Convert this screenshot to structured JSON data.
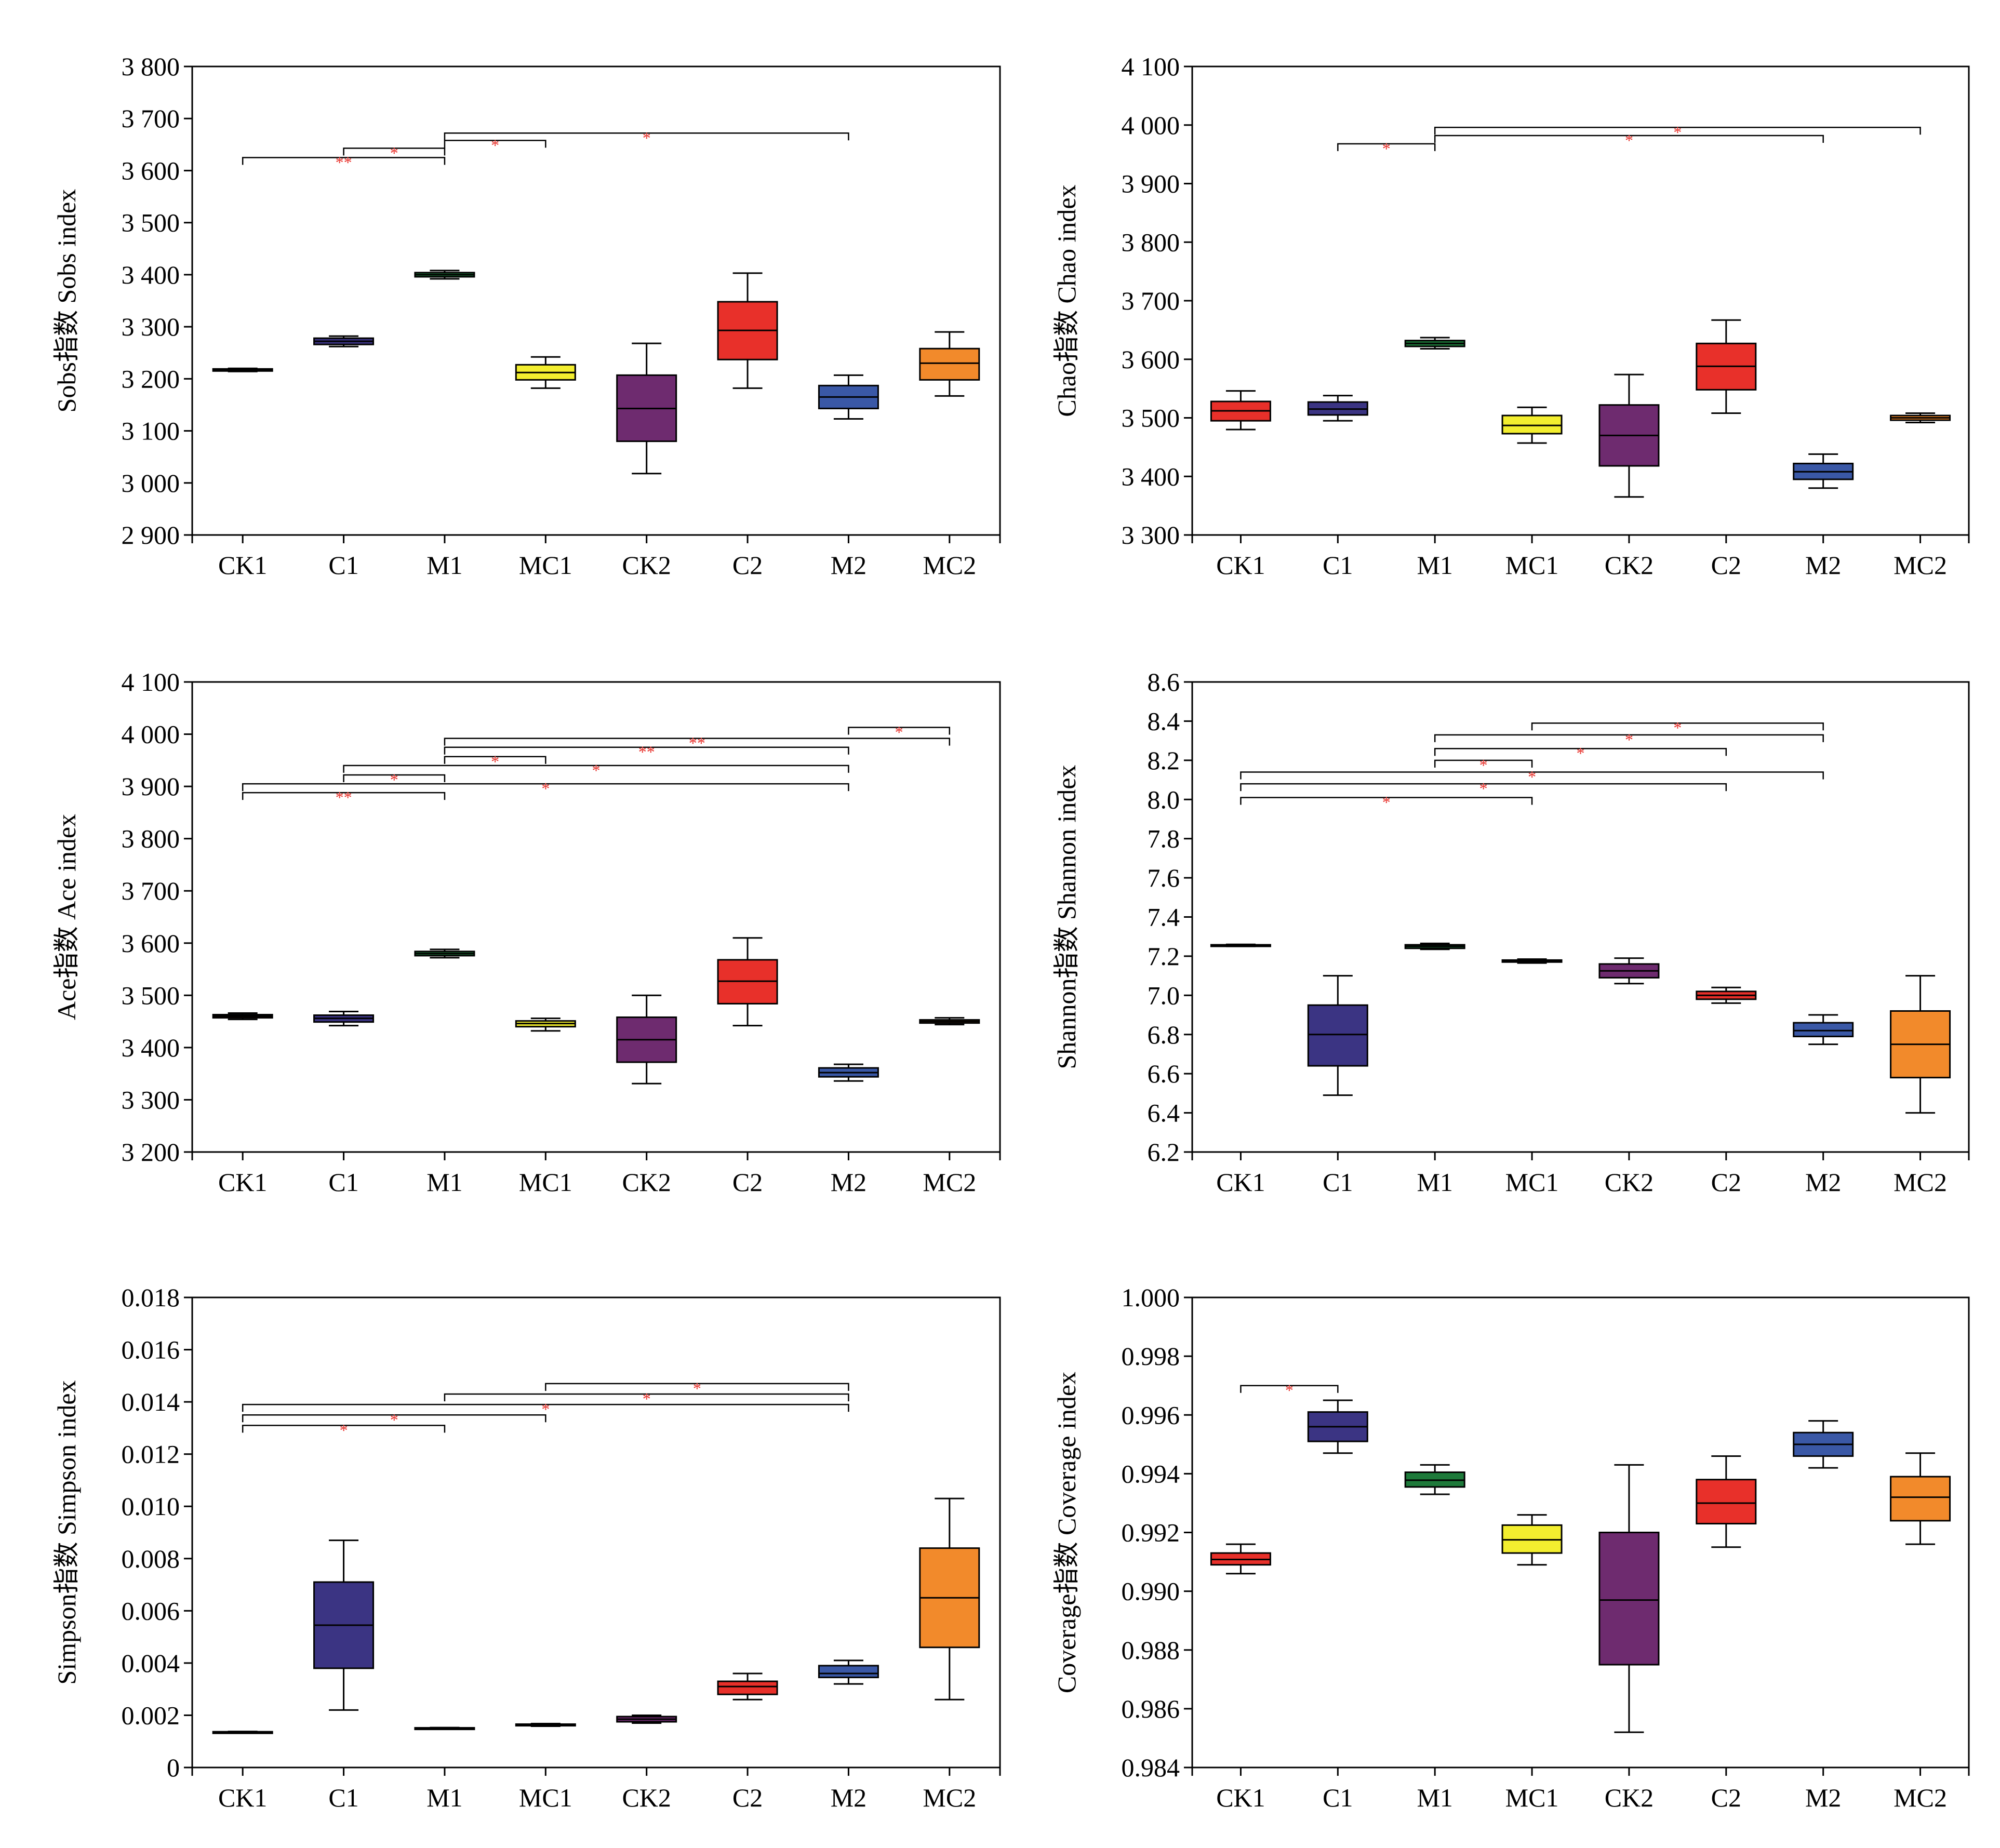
{
  "colors": {
    "CK1": "#e8302a",
    "C1": "#3b3483",
    "M1": "#1e7a3a",
    "MC1": "#f3ee2f",
    "CK2": "#6e2b6f",
    "C2": "#e8302a",
    "M2": "#3a58a6",
    "MC2": "#f28a2b",
    "significance": "#e8302a"
  },
  "chart_data": [
    {
      "type": "box",
      "ylabel": "Sobs指数 Sobs index",
      "categories": [
        "CK1",
        "C1",
        "M1",
        "MC1",
        "CK2",
        "C2",
        "M2",
        "MC2"
      ],
      "ylim": [
        2900,
        3800
      ],
      "yticks": [
        2900,
        3000,
        3100,
        3200,
        3300,
        3400,
        3500,
        3600,
        3700,
        3800
      ],
      "ytick_labels": [
        "2 900",
        "3 000",
        "3 100",
        "3 200",
        "3 300",
        "3 400",
        "3 500",
        "3 600",
        "3 700",
        "3 800"
      ],
      "boxes": [
        {
          "min": 3214,
          "q1": 3215,
          "median": 3217,
          "q3": 3219,
          "max": 3220
        },
        {
          "min": 3262,
          "q1": 3266,
          "median": 3272,
          "q3": 3278,
          "max": 3282
        },
        {
          "min": 3392,
          "q1": 3396,
          "median": 3400,
          "q3": 3404,
          "max": 3408
        },
        {
          "min": 3182,
          "q1": 3198,
          "median": 3212,
          "q3": 3227,
          "max": 3242
        },
        {
          "min": 3018,
          "q1": 3080,
          "median": 3143,
          "q3": 3207,
          "max": 3268
        },
        {
          "min": 3182,
          "q1": 3237,
          "median": 3293,
          "q3": 3348,
          "max": 3403
        },
        {
          "min": 3123,
          "q1": 3143,
          "median": 3165,
          "q3": 3187,
          "max": 3207
        },
        {
          "min": 3167,
          "q1": 3198,
          "median": 3230,
          "q3": 3258,
          "max": 3290
        }
      ],
      "significance": [
        {
          "from": 0,
          "to": 2,
          "y": 3625,
          "label": "**"
        },
        {
          "from": 1,
          "to": 2,
          "y": 3643,
          "label": "*"
        },
        {
          "from": 2,
          "to": 3,
          "y": 3658,
          "label": "*"
        },
        {
          "from": 2,
          "to": 6,
          "y": 3672,
          "label": "*"
        }
      ]
    },
    {
      "type": "box",
      "ylabel": "Chao指数 Chao index",
      "categories": [
        "CK1",
        "C1",
        "M1",
        "MC1",
        "CK2",
        "C2",
        "M2",
        "MC2"
      ],
      "ylim": [
        3300,
        4100
      ],
      "yticks": [
        3300,
        3400,
        3500,
        3600,
        3700,
        3800,
        3900,
        4000,
        4100
      ],
      "ytick_labels": [
        "3 300",
        "3 400",
        "3 500",
        "3 600",
        "3 700",
        "3 800",
        "3 900",
        "4 000",
        "4 100"
      ],
      "boxes": [
        {
          "min": 3480,
          "q1": 3495,
          "median": 3512,
          "q3": 3528,
          "max": 3546
        },
        {
          "min": 3495,
          "q1": 3505,
          "median": 3515,
          "q3": 3527,
          "max": 3538
        },
        {
          "min": 3618,
          "q1": 3622,
          "median": 3627,
          "q3": 3632,
          "max": 3637
        },
        {
          "min": 3457,
          "q1": 3473,
          "median": 3487,
          "q3": 3504,
          "max": 3518
        },
        {
          "min": 3365,
          "q1": 3418,
          "median": 3470,
          "q3": 3522,
          "max": 3574
        },
        {
          "min": 3508,
          "q1": 3548,
          "median": 3588,
          "q3": 3627,
          "max": 3667
        },
        {
          "min": 3380,
          "q1": 3395,
          "median": 3408,
          "q3": 3422,
          "max": 3438
        },
        {
          "min": 3492,
          "q1": 3496,
          "median": 3500,
          "q3": 3504,
          "max": 3508
        }
      ],
      "significance": [
        {
          "from": 1,
          "to": 2,
          "y": 3968,
          "label": "*"
        },
        {
          "from": 2,
          "to": 6,
          "y": 3982,
          "label": "*"
        },
        {
          "from": 2,
          "to": 7,
          "y": 3996,
          "label": "*"
        }
      ]
    },
    {
      "type": "box",
      "ylabel": "Ace指数 Ace index",
      "categories": [
        "CK1",
        "C1",
        "M1",
        "MC1",
        "CK2",
        "C2",
        "M2",
        "MC2"
      ],
      "ylim": [
        3200,
        4100
      ],
      "yticks": [
        3200,
        3300,
        3400,
        3500,
        3600,
        3700,
        3800,
        3900,
        4000,
        4100
      ],
      "ytick_labels": [
        "3 200",
        "3 300",
        "3 400",
        "3 500",
        "3 600",
        "3 700",
        "3 800",
        "3 900",
        "4 000",
        "4 100"
      ],
      "boxes": [
        {
          "min": 3454,
          "q1": 3457,
          "median": 3460,
          "q3": 3463,
          "max": 3466
        },
        {
          "min": 3442,
          "q1": 3449,
          "median": 3456,
          "q3": 3462,
          "max": 3469
        },
        {
          "min": 3572,
          "q1": 3576,
          "median": 3580,
          "q3": 3584,
          "max": 3588
        },
        {
          "min": 3432,
          "q1": 3440,
          "median": 3446,
          "q3": 3451,
          "max": 3456
        },
        {
          "min": 3331,
          "q1": 3372,
          "median": 3415,
          "q3": 3458,
          "max": 3500
        },
        {
          "min": 3442,
          "q1": 3484,
          "median": 3527,
          "q3": 3568,
          "max": 3610
        },
        {
          "min": 3336,
          "q1": 3344,
          "median": 3352,
          "q3": 3361,
          "max": 3368
        },
        {
          "min": 3444,
          "q1": 3447,
          "median": 3450,
          "q3": 3453,
          "max": 3457
        }
      ],
      "significance": [
        {
          "from": 0,
          "to": 2,
          "y": 3888,
          "label": "**"
        },
        {
          "from": 0,
          "to": 6,
          "y": 3905,
          "label": "*"
        },
        {
          "from": 1,
          "to": 2,
          "y": 3922,
          "label": "*"
        },
        {
          "from": 1,
          "to": 6,
          "y": 3940,
          "label": "*"
        },
        {
          "from": 2,
          "to": 3,
          "y": 3957,
          "label": "*"
        },
        {
          "from": 2,
          "to": 6,
          "y": 3975,
          "label": "**"
        },
        {
          "from": 2,
          "to": 7,
          "y": 3992,
          "label": "**"
        },
        {
          "from": 6,
          "to": 7,
          "y": 4013,
          "label": "*"
        }
      ]
    },
    {
      "type": "box",
      "ylabel": "Shannon指数 Shannon index",
      "categories": [
        "CK1",
        "C1",
        "M1",
        "MC1",
        "CK2",
        "C2",
        "M2",
        "MC2"
      ],
      "ylim": [
        6.2,
        8.6
      ],
      "yticks": [
        6.2,
        6.4,
        6.6,
        6.8,
        7.0,
        7.2,
        7.4,
        7.6,
        7.8,
        8.0,
        8.2,
        8.4,
        8.6
      ],
      "ytick_labels": [
        "6.2",
        "6.4",
        "6.6",
        "6.8",
        "7.0",
        "7.2",
        "7.4",
        "7.6",
        "7.8",
        "8.0",
        "8.2",
        "8.4",
        "8.6"
      ],
      "boxes": [
        {
          "min": 7.25,
          "q1": 7.252,
          "median": 7.255,
          "q3": 7.258,
          "max": 7.26
        },
        {
          "min": 6.49,
          "q1": 6.64,
          "median": 6.8,
          "q3": 6.95,
          "max": 7.1
        },
        {
          "min": 7.235,
          "q1": 7.24,
          "median": 7.25,
          "q3": 7.258,
          "max": 7.265
        },
        {
          "min": 7.165,
          "q1": 7.17,
          "median": 7.175,
          "q3": 7.18,
          "max": 7.185
        },
        {
          "min": 7.06,
          "q1": 7.09,
          "median": 7.125,
          "q3": 7.16,
          "max": 7.19
        },
        {
          "min": 6.96,
          "q1": 6.98,
          "median": 7.0,
          "q3": 7.02,
          "max": 7.04
        },
        {
          "min": 6.75,
          "q1": 6.79,
          "median": 6.82,
          "q3": 6.86,
          "max": 6.9
        },
        {
          "min": 6.4,
          "q1": 6.58,
          "median": 6.75,
          "q3": 6.92,
          "max": 7.1
        }
      ],
      "significance": [
        {
          "from": 0,
          "to": 3,
          "y": 8.01,
          "label": "*"
        },
        {
          "from": 0,
          "to": 5,
          "y": 8.08,
          "label": "*"
        },
        {
          "from": 0,
          "to": 6,
          "y": 8.14,
          "label": "*"
        },
        {
          "from": 2,
          "to": 3,
          "y": 8.2,
          "label": "*"
        },
        {
          "from": 2,
          "to": 5,
          "y": 8.26,
          "label": "*"
        },
        {
          "from": 2,
          "to": 6,
          "y": 8.33,
          "label": "*"
        },
        {
          "from": 3,
          "to": 6,
          "y": 8.39,
          "label": "*"
        }
      ]
    },
    {
      "type": "box",
      "ylabel": "Simpson指数 Simpson index",
      "categories": [
        "CK1",
        "C1",
        "M1",
        "MC1",
        "CK2",
        "C2",
        "M2",
        "MC2"
      ],
      "ylim": [
        0,
        0.018
      ],
      "yticks": [
        0,
        0.002,
        0.004,
        0.006,
        0.008,
        0.01,
        0.012,
        0.014,
        0.016,
        0.018
      ],
      "ytick_labels": [
        "0",
        "0.002",
        "0.004",
        "0.006",
        "0.008",
        "0.010",
        "0.012",
        "0.014",
        "0.016",
        "0.018"
      ],
      "boxes": [
        {
          "min": 0.00134,
          "q1": 0.00135,
          "median": 0.00136,
          "q3": 0.00137,
          "max": 0.00138
        },
        {
          "min": 0.0022,
          "q1": 0.0038,
          "median": 0.00545,
          "q3": 0.0071,
          "max": 0.0087
        },
        {
          "min": 0.00149,
          "q1": 0.0015,
          "median": 0.00151,
          "q3": 0.00152,
          "max": 0.00153
        },
        {
          "min": 0.00158,
          "q1": 0.0016,
          "median": 0.00163,
          "q3": 0.00166,
          "max": 0.00168
        },
        {
          "min": 0.0017,
          "q1": 0.00175,
          "median": 0.00185,
          "q3": 0.00195,
          "max": 0.002
        },
        {
          "min": 0.0026,
          "q1": 0.0028,
          "median": 0.0031,
          "q3": 0.0033,
          "max": 0.0036
        },
        {
          "min": 0.0032,
          "q1": 0.00345,
          "median": 0.0036,
          "q3": 0.0039,
          "max": 0.0041
        },
        {
          "min": 0.0026,
          "q1": 0.0046,
          "median": 0.0065,
          "q3": 0.0084,
          "max": 0.0103
        }
      ],
      "significance": [
        {
          "from": 0,
          "to": 2,
          "y": 0.0131,
          "label": "*"
        },
        {
          "from": 0,
          "to": 3,
          "y": 0.0135,
          "label": "*"
        },
        {
          "from": 0,
          "to": 6,
          "y": 0.0139,
          "label": "*"
        },
        {
          "from": 2,
          "to": 6,
          "y": 0.0143,
          "label": "*"
        },
        {
          "from": 3,
          "to": 6,
          "y": 0.0147,
          "label": "*"
        }
      ]
    },
    {
      "type": "box",
      "ylabel": "Coverage指数 Coverage index",
      "categories": [
        "CK1",
        "C1",
        "M1",
        "MC1",
        "CK2",
        "C2",
        "M2",
        "MC2"
      ],
      "ylim": [
        0.984,
        1.0
      ],
      "yticks": [
        0.984,
        0.986,
        0.988,
        0.99,
        0.992,
        0.994,
        0.996,
        0.998,
        1.0
      ],
      "ytick_labels": [
        "0.984",
        "0.986",
        "0.988",
        "0.990",
        "0.992",
        "0.994",
        "0.996",
        "0.998",
        "1.000"
      ],
      "boxes": [
        {
          "min": 0.9906,
          "q1": 0.9909,
          "median": 0.99108,
          "q3": 0.9913,
          "max": 0.9916
        },
        {
          "min": 0.9947,
          "q1": 0.9951,
          "median": 0.9956,
          "q3": 0.9961,
          "max": 0.9965
        },
        {
          "min": 0.9933,
          "q1": 0.99355,
          "median": 0.99378,
          "q3": 0.99405,
          "max": 0.9943
        },
        {
          "min": 0.9909,
          "q1": 0.9913,
          "median": 0.99175,
          "q3": 0.99225,
          "max": 0.9926
        },
        {
          "min": 0.9852,
          "q1": 0.9875,
          "median": 0.9897,
          "q3": 0.992,
          "max": 0.9943
        },
        {
          "min": 0.9915,
          "q1": 0.9923,
          "median": 0.993,
          "q3": 0.9938,
          "max": 0.9946
        },
        {
          "min": 0.9942,
          "q1": 0.9946,
          "median": 0.995,
          "q3": 0.9954,
          "max": 0.9958
        },
        {
          "min": 0.9916,
          "q1": 0.9924,
          "median": 0.9932,
          "q3": 0.9939,
          "max": 0.9947
        }
      ],
      "significance": [
        {
          "from": 0,
          "to": 1,
          "y": 0.997,
          "label": "*"
        }
      ]
    }
  ]
}
